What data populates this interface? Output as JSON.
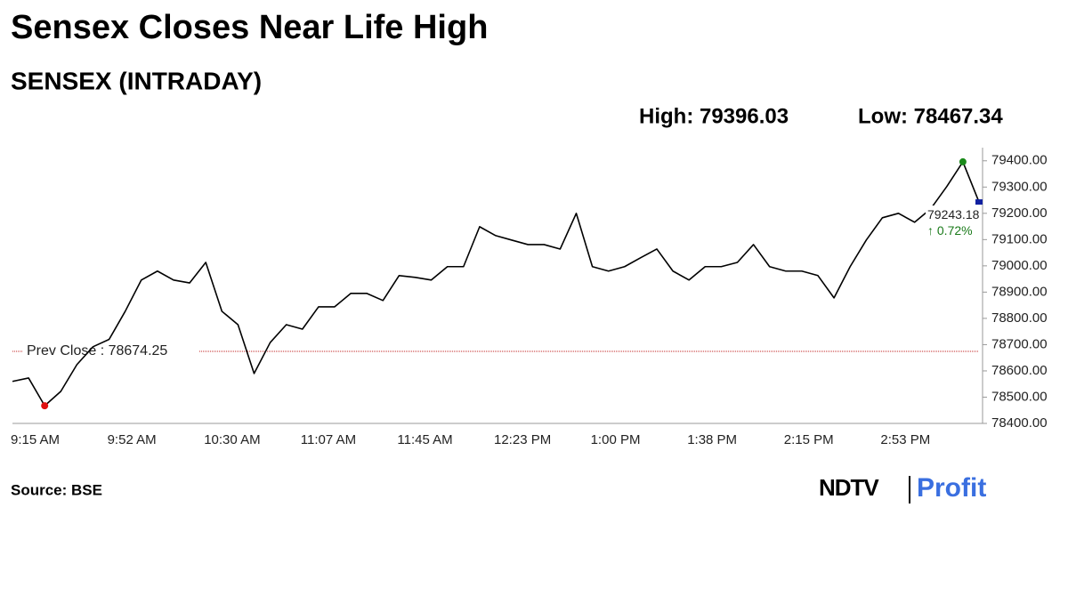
{
  "chart_data": {
    "type": "line",
    "title": "Sensex Closes Near Life High",
    "subtitle": "SENSEX (INTRADAY)",
    "high_label": "High: 79396.03",
    "low_label": "Low: 78467.34",
    "source": "Source: BSE",
    "brand": "NDTV",
    "brand_product": "Profit",
    "categories": [
      "9:15 AM",
      null,
      null,
      null,
      null,
      null,
      "9:52 AM",
      null,
      null,
      null,
      null,
      null,
      "10:30 AM",
      null,
      null,
      null,
      null,
      null,
      "11:07 AM",
      null,
      null,
      null,
      null,
      null,
      "11:45 AM",
      null,
      null,
      null,
      null,
      null,
      "12:23 PM",
      null,
      null,
      null,
      null,
      null,
      "1:00 PM",
      null,
      null,
      null,
      null,
      null,
      "1:38 PM",
      null,
      null,
      null,
      null,
      null,
      "2:15 PM",
      null,
      null,
      null,
      null,
      null,
      "2:53 PM",
      null,
      null,
      null,
      null,
      null,
      null
    ],
    "values": [
      78560,
      78573,
      78467.34,
      78522,
      78624,
      78692,
      78720,
      78827,
      78946,
      78980,
      78946,
      78935,
      79013,
      78827,
      78776,
      78590,
      78708,
      78776,
      78759,
      78844,
      78844,
      78895,
      78895,
      78868,
      78963,
      78956,
      78946,
      78997,
      78997,
      79149,
      79115,
      79098,
      79081,
      79081,
      79064,
      79200,
      78997,
      78980,
      78997,
      79031,
      79064,
      78980,
      78946,
      78997,
      78997,
      79013,
      79081,
      78997,
      78980,
      78980,
      78963,
      78878,
      78997,
      79098,
      79183,
      79200,
      79166,
      79217,
      79302,
      79396.03,
      79243.18
    ],
    "color": "#000000",
    "high_color": "#1a8a1a",
    "low_color": "#e01010",
    "close_color": "#1020a0",
    "change_label": "↑ 0.72%",
    "change_color": "#1a7a1a",
    "prev_close": {
      "value": 78674.25,
      "label": "Prev Close : 78674.25"
    },
    "prev_close_color": "#c02020",
    "ylim": [
      78400,
      79450
    ],
    "yticks": [
      {
        "value": 78400,
        "label": "78400.00"
      },
      {
        "value": 78500,
        "label": "78500.00"
      },
      {
        "value": 78600,
        "label": "78600.00"
      },
      {
        "value": 78700,
        "label": "78700.00"
      },
      {
        "value": 78800,
        "label": "78800.00"
      },
      {
        "value": 78900,
        "label": "78900.00"
      },
      {
        "value": 79000,
        "label": "79000.00"
      },
      {
        "value": 79100,
        "label": "79100.00"
      },
      {
        "value": 79200,
        "label": "79200.00"
      },
      {
        "value": 79300,
        "label": "79300.00"
      },
      {
        "value": 79400,
        "label": "79400.00"
      }
    ]
  }
}
